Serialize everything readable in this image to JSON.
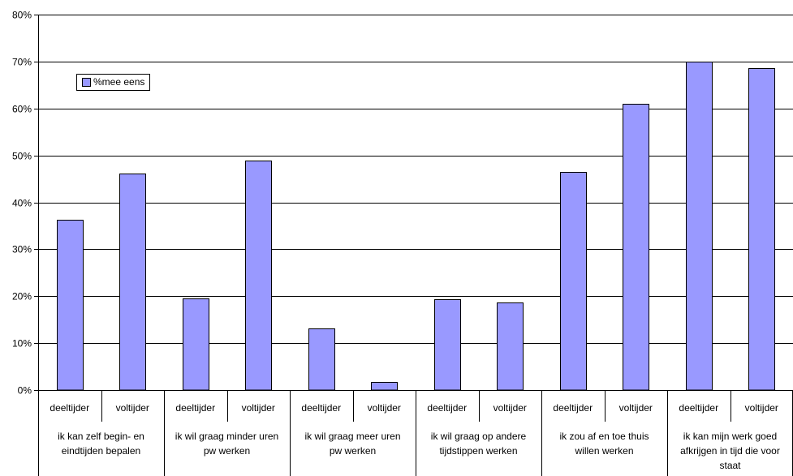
{
  "chart_data": {
    "type": "bar",
    "yticks": [
      "0%",
      "10%",
      "20%",
      "30%",
      "40%",
      "50%",
      "60%",
      "70%",
      "80%"
    ],
    "ylim": [
      0,
      80
    ],
    "grid": true,
    "legend_position": "top-left",
    "groups": [
      {
        "label_lines": [
          "ik kan zelf begin- en",
          "eindtijden bepalen"
        ],
        "bars": [
          {
            "sub": "deeltijder",
            "value": 36.3
          },
          {
            "sub": "voltijder",
            "value": 46.1
          }
        ]
      },
      {
        "label_lines": [
          "ik wil graag minder uren",
          "pw werken"
        ],
        "bars": [
          {
            "sub": "deeltijder",
            "value": 19.6
          },
          {
            "sub": "voltijder",
            "value": 48.9
          }
        ]
      },
      {
        "label_lines": [
          "ik wil graag meer uren",
          "pw werken"
        ],
        "bars": [
          {
            "sub": "deeltijder",
            "value": 13.1
          },
          {
            "sub": "voltijder",
            "value": 1.7
          }
        ]
      },
      {
        "label_lines": [
          "ik wil graag op andere",
          "tijdstippen werken"
        ],
        "bars": [
          {
            "sub": "deeltijder",
            "value": 19.3
          },
          {
            "sub": "voltijder",
            "value": 18.6
          }
        ]
      },
      {
        "label_lines": [
          "ik zou af en toe thuis",
          "willen werken"
        ],
        "bars": [
          {
            "sub": "deeltijder",
            "value": 46.5
          },
          {
            "sub": "voltijder",
            "value": 61.0
          }
        ]
      },
      {
        "label_lines": [
          "ik kan mijn werk goed",
          "afkrijgen in tijd die voor",
          "staat"
        ],
        "bars": [
          {
            "sub": "deeltijder",
            "value": 70.0
          },
          {
            "sub": "voltijder",
            "value": 68.6
          }
        ]
      }
    ],
    "series": [
      {
        "name": "%mee eens",
        "color": "#9999ff"
      }
    ]
  }
}
